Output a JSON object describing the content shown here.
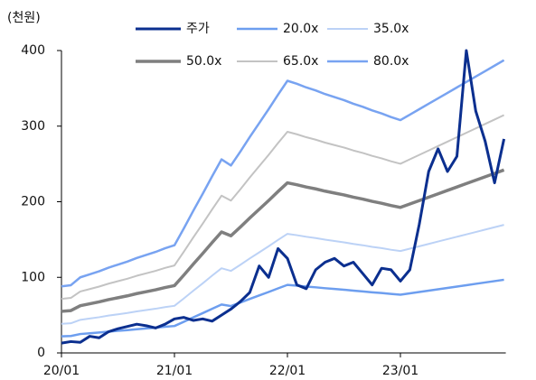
{
  "chart_data": {
    "type": "line",
    "y_axis_label": "(천원)",
    "categories": [
      "20/01",
      null,
      null,
      null,
      null,
      null,
      null,
      null,
      null,
      null,
      null,
      null,
      "21/01",
      null,
      null,
      null,
      null,
      null,
      null,
      null,
      null,
      null,
      null,
      null,
      "22/01",
      null,
      null,
      null,
      null,
      null,
      null,
      null,
      null,
      null,
      null,
      null,
      "23/01",
      null,
      null,
      null,
      null,
      null,
      null,
      null,
      null,
      null,
      null,
      null
    ],
    "ylim": [
      0,
      400
    ],
    "yticks": [
      0,
      100,
      200,
      300,
      400
    ],
    "series": [
      {
        "name": "주가",
        "color": "#0b2f8f",
        "width": 3,
        "values": [
          13,
          15,
          14,
          22,
          20,
          28,
          32,
          35,
          38,
          36,
          33,
          38,
          45,
          47,
          43,
          45,
          42,
          50,
          58,
          68,
          80,
          115,
          100,
          138,
          125,
          90,
          85,
          110,
          120,
          125,
          115,
          120,
          105,
          90,
          112,
          110,
          95,
          110,
          170,
          240,
          270,
          240,
          260,
          400,
          320,
          280,
          225,
          283
        ]
      },
      {
        "name": "20.0x",
        "color": "#6d9eef",
        "width": 2.5,
        "values": [
          22,
          22.4,
          25,
          26,
          27,
          28.2,
          29.2,
          30.2,
          31.4,
          32.4,
          33.4,
          34.6,
          35.6,
          41.2,
          47,
          52.6,
          58.4,
          64,
          62,
          66.6,
          71.4,
          76,
          80.6,
          85.4,
          90,
          89,
          87.8,
          86.8,
          85.6,
          84.6,
          83.6,
          82.4,
          81.4,
          80.2,
          79.2,
          78,
          77,
          78.8,
          80.6,
          82.4,
          84.2,
          86,
          87.8,
          89.6,
          91.4,
          93.2,
          95,
          96.8
        ]
      },
      {
        "name": "35.0x",
        "color": "#bcd2f6",
        "width": 2,
        "values": [
          38.5,
          39.2,
          43.75,
          45.5,
          47.25,
          49.35,
          51.1,
          52.85,
          54.95,
          56.7,
          58.45,
          60.55,
          62.3,
          72.1,
          82.25,
          92.05,
          102.2,
          112,
          108.5,
          116.55,
          124.95,
          133,
          141.05,
          149.45,
          157.5,
          155.75,
          153.65,
          151.9,
          149.8,
          148.05,
          146.3,
          144.2,
          142.45,
          140.35,
          138.6,
          136.5,
          134.75,
          137.9,
          141.05,
          144.2,
          147.35,
          150.5,
          153.65,
          156.8,
          159.95,
          163.1,
          166.25,
          169.4
        ]
      },
      {
        "name": "50.0x",
        "color": "#7f7f7f",
        "width": 3.5,
        "values": [
          55,
          56,
          62.5,
          65,
          67.5,
          70.5,
          73,
          75.5,
          78.5,
          81,
          83.5,
          86.5,
          89,
          103,
          117.5,
          131.5,
          146,
          160,
          155,
          166.5,
          178.5,
          190,
          201.5,
          213.5,
          225,
          222.5,
          219.5,
          217,
          214,
          211.5,
          209,
          206,
          203.5,
          200.5,
          198,
          195,
          192.5,
          197,
          201.5,
          206,
          210.5,
          215,
          219.5,
          224,
          228.5,
          233,
          237.5,
          242
        ]
      },
      {
        "name": "65.0x",
        "color": "#c3c3c3",
        "width": 2,
        "values": [
          71.5,
          72.8,
          81.25,
          84.5,
          87.75,
          91.65,
          94.9,
          98.15,
          102.05,
          105.3,
          108.55,
          112.45,
          115.7,
          133.9,
          152.75,
          170.95,
          189.8,
          208,
          201.5,
          216.45,
          232.05,
          247,
          261.95,
          277.55,
          292.5,
          289.25,
          285.35,
          282.1,
          278.2,
          274.95,
          271.7,
          267.8,
          264.55,
          260.65,
          257.4,
          253.5,
          250.25,
          256.1,
          261.95,
          267.8,
          273.65,
          279.5,
          285.35,
          291.2,
          297.05,
          302.9,
          308.75,
          314.6
        ]
      },
      {
        "name": "80.0x",
        "color": "#78a3f1",
        "width": 2.5,
        "values": [
          88,
          89.6,
          100,
          104,
          108,
          112.8,
          116.8,
          120.8,
          125.6,
          129.6,
          133.6,
          138.4,
          142.4,
          164.8,
          188,
          210.4,
          233.6,
          256,
          248,
          266.4,
          285.6,
          304,
          322.4,
          341.6,
          360,
          356,
          351.2,
          347.2,
          342.4,
          338.4,
          334.4,
          329.6,
          325.6,
          320.8,
          316.8,
          312,
          308,
          315.2,
          322.4,
          329.6,
          336.8,
          344,
          351.2,
          358.4,
          365.6,
          372.8,
          380,
          387.2
        ]
      }
    ]
  }
}
